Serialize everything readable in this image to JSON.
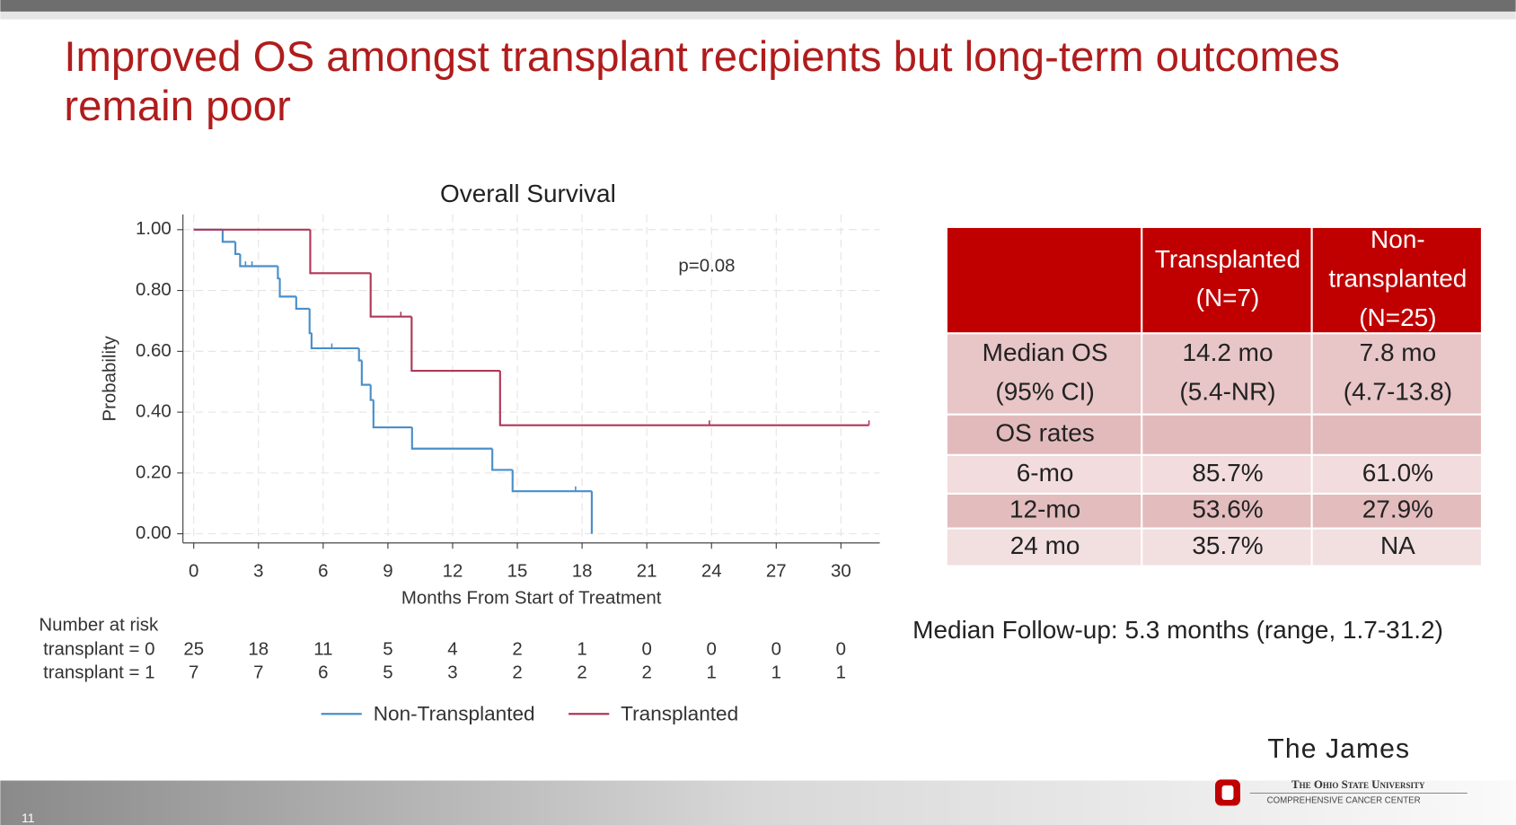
{
  "title": [
    "Improved OS amongst transplant recipients but long-term outcomes",
    "remain poor"
  ],
  "chart_data": {
    "type": "step",
    "title": "Overall Survival",
    "xlabel": "Months From Start of Treatment",
    "ylabel": "Probability",
    "xlim": [
      -0.5,
      31.8
    ],
    "ylim": [
      -0.03,
      1.05
    ],
    "xticks": [
      0,
      3,
      6,
      9,
      12,
      15,
      18,
      21,
      24,
      27,
      30
    ],
    "yticks": [
      {
        "value": 0,
        "label": "0.00"
      },
      {
        "value": 0.2,
        "label": "0.20"
      },
      {
        "value": 0.4,
        "label": "0.40"
      },
      {
        "value": 0.6,
        "label": "0.60"
      },
      {
        "value": 0.8,
        "label": "0.80"
      },
      {
        "value": 1,
        "label": "1.00"
      }
    ],
    "grid": true,
    "annotation": "p=0.08",
    "series": [
      {
        "name": "Non-Transplanted",
        "color": "#4a8fca",
        "x": [
          0,
          1.34,
          1.93,
          2.15,
          3.9,
          3.99,
          4.75,
          5.37,
          5.46,
          7.66,
          7.79,
          8.2,
          8.33,
          10.12,
          13.84,
          14.78,
          18.45
        ],
        "values": [
          1,
          0.96,
          0.92,
          0.88,
          0.84,
          0.78,
          0.74,
          0.66,
          0.61,
          0.57,
          0.49,
          0.44,
          0.35,
          0.28,
          0.21,
          0.14,
          0
        ],
        "censored_x": [
          2.4,
          2.7,
          6.4,
          17.7
        ]
      },
      {
        "name": "Transplanted",
        "color": "#b0385a",
        "x": [
          0,
          5.4,
          8.2,
          10.1,
          14.2,
          31.3
        ],
        "values": [
          1,
          0.857,
          0.714,
          0.536,
          0.357,
          0.357
        ],
        "censored_x": [
          9.6,
          23.9,
          31.3
        ]
      }
    ],
    "risk_table": {
      "title": "Number at risk",
      "rows": [
        {
          "label": "transplant = 0",
          "counts": [
            25,
            18,
            11,
            5,
            4,
            2,
            1,
            0,
            0,
            0,
            0
          ]
        },
        {
          "label": "transplant = 1",
          "counts": [
            7,
            7,
            6,
            5,
            3,
            2,
            2,
            2,
            1,
            1,
            1
          ]
        }
      ]
    }
  },
  "table": {
    "columns": [
      [
        "Transplanted",
        "(N=7)"
      ],
      [
        "Non-",
        "transplanted",
        "(N=25)"
      ]
    ],
    "rows": [
      {
        "label": [
          "Median OS",
          "(95% CI)"
        ],
        "cells": [
          [
            "14.2 mo",
            "(5.4-NR)"
          ],
          [
            "7.8 mo",
            "(4.7-13.8)"
          ]
        ]
      },
      {
        "label": [
          "OS rates"
        ],
        "cells": []
      },
      {
        "label": [
          "6-mo"
        ],
        "cells": [
          [
            "85.7%"
          ],
          [
            "61.0%"
          ]
        ]
      },
      {
        "label": [
          "12-mo"
        ],
        "cells": [
          [
            "53.6%"
          ],
          [
            "27.9%"
          ]
        ]
      },
      {
        "label": [
          "24 mo"
        ],
        "cells": [
          [
            "35.7%"
          ],
          [
            "NA"
          ]
        ]
      }
    ]
  },
  "follow_up": "Median Follow-up: 5.3 months (range, 1.7-31.2)",
  "footer": {
    "brand": "The James",
    "university": "The Ohio State University",
    "center": "Comprehensive Cancer Center",
    "slide_number": "11"
  }
}
